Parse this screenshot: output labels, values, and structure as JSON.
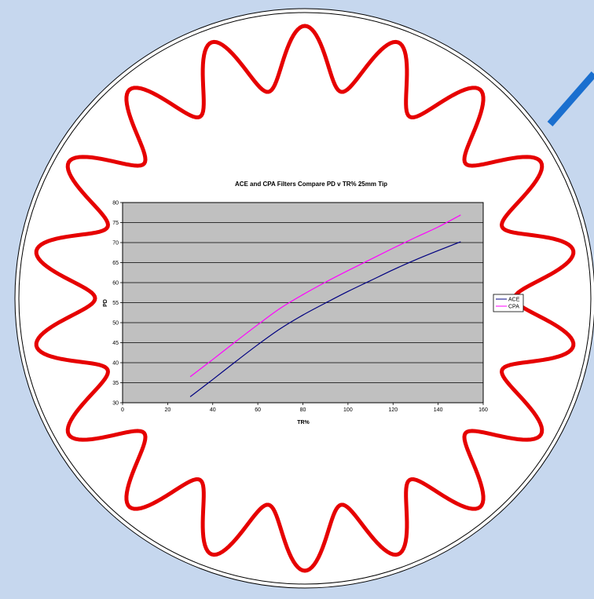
{
  "colors": {
    "background": "#c6d7ee",
    "filter_outline": "#e60000",
    "plot_background": "#c0c0c0",
    "pointer": "#1a6fcf"
  },
  "chart_data": {
    "type": "line",
    "title": "ACE and CPA Filters Compare PD v TR% 25mm Tip",
    "xlabel": "TR%",
    "ylabel": "PD",
    "xlim": [
      0,
      160
    ],
    "ylim": [
      30,
      80
    ],
    "xticks": [
      "0",
      "20",
      "40",
      "60",
      "80",
      "100",
      "120",
      "140",
      "160"
    ],
    "yticks": [
      "30",
      "35",
      "40",
      "45",
      "50",
      "55",
      "60",
      "65",
      "70",
      "75",
      "80"
    ],
    "grid": true,
    "legend": "right",
    "series": [
      {
        "name": "ACE",
        "color": "#000080",
        "x": [
          30,
          40,
          50,
          60,
          70,
          80,
          90,
          100,
          110,
          120,
          130,
          140,
          150
        ],
        "y": [
          31.5,
          35.8,
          40.2,
          44.5,
          48.5,
          51.9,
          54.9,
          57.8,
          60.5,
          63.2,
          65.7,
          68.0,
          70.2
        ]
      },
      {
        "name": "CPA",
        "color": "#ff00ff",
        "x": [
          30,
          40,
          50,
          60,
          70,
          80,
          90,
          100,
          110,
          120,
          130,
          140,
          150
        ],
        "y": [
          36.5,
          40.8,
          45.2,
          49.5,
          53.6,
          57.0,
          60.1,
          63.0,
          65.8,
          68.6,
          71.3,
          73.9,
          76.9
        ]
      }
    ]
  }
}
